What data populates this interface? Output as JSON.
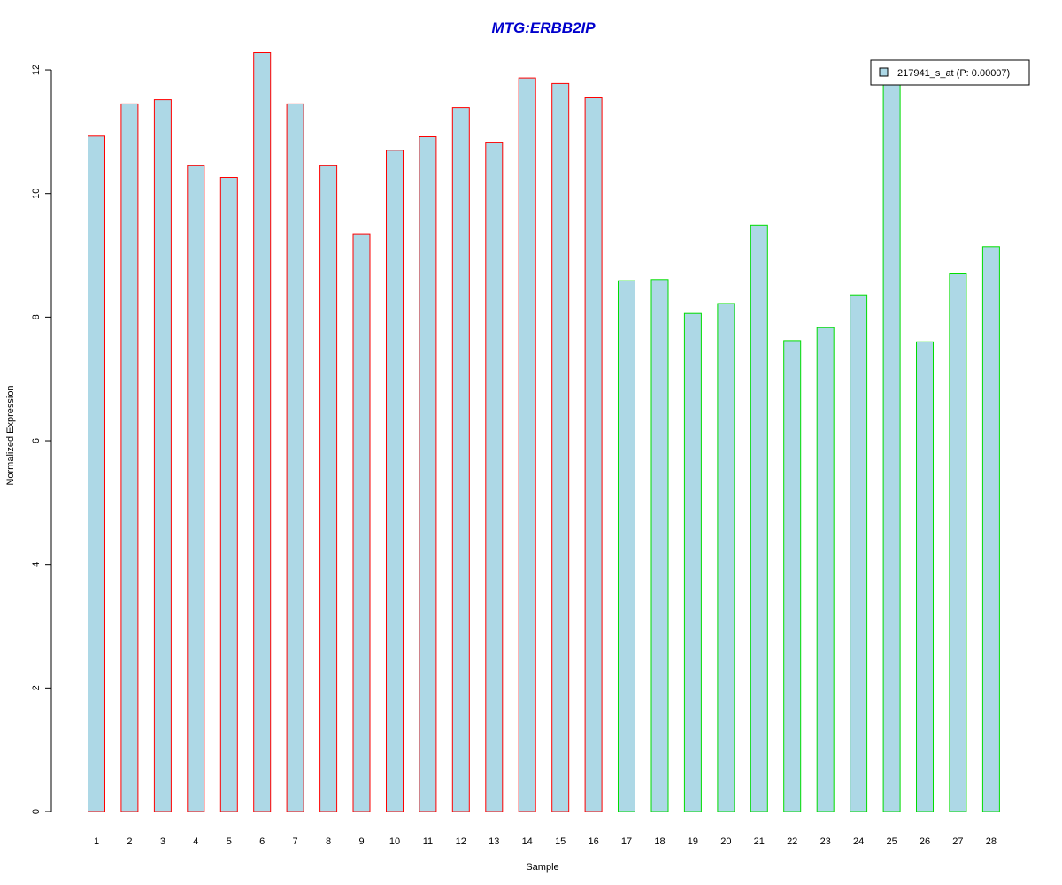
{
  "chart_data": {
    "type": "bar",
    "title": "MTG:ERBB2IP",
    "xlabel": "Sample",
    "ylabel": "Normalized Expression",
    "categories": [
      "1",
      "2",
      "3",
      "4",
      "5",
      "6",
      "7",
      "8",
      "9",
      "10",
      "11",
      "12",
      "13",
      "14",
      "15",
      "16",
      "17",
      "18",
      "19",
      "20",
      "21",
      "22",
      "23",
      "24",
      "25",
      "26",
      "27",
      "28"
    ],
    "series": [
      {
        "name": "217941_s_at (P: 0.00007)",
        "values": [
          10.93,
          11.45,
          11.52,
          10.45,
          10.26,
          12.28,
          11.45,
          10.45,
          9.35,
          10.7,
          10.92,
          11.39,
          10.82,
          11.87,
          11.78,
          11.55,
          8.59,
          8.61,
          8.06,
          8.22,
          9.49,
          7.62,
          7.83,
          8.36,
          11.77,
          7.6,
          8.7,
          9.14
        ]
      }
    ],
    "groups": [
      {
        "range": [
          1,
          16
        ],
        "border_color": "#ff0000"
      },
      {
        "range": [
          17,
          28
        ],
        "border_color": "#00dd00"
      }
    ],
    "y_ticks": [
      0,
      2,
      4,
      6,
      8,
      10,
      12
    ],
    "ylim": [
      0,
      12.3
    ],
    "legend_position": "top-right",
    "grid": false,
    "colors": {
      "bar_fill": "#add8e6",
      "title": "#0000cc",
      "axis": "#000000"
    }
  }
}
